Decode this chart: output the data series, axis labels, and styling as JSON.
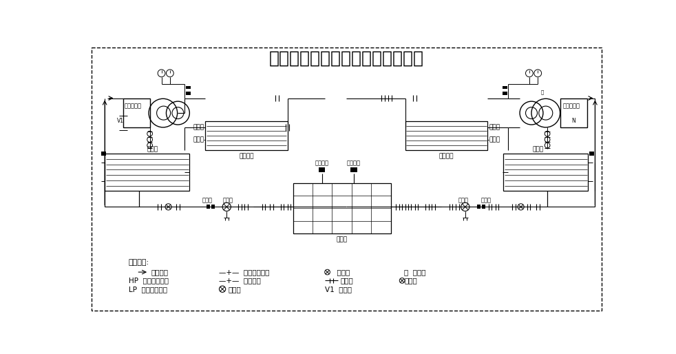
{
  "title": "热回收型水冷式螺杆机工作原理图",
  "bg_color": "#ffffff",
  "line_color": "#000000",
  "legend_title": "符号说明:",
  "left_compressor_label": "螺杆压缩机",
  "right_compressor_label": "螺杆压缩机",
  "left_compressor_sublabel": "V1",
  "right_compressor_sublabel": "N",
  "left_condenser_label": "冷凝器",
  "right_condenser_label": "冷凝器",
  "left_hr_label": "热回收器",
  "right_hr_label": "热回收器",
  "evaporator_label": "蒸发器",
  "left_filter_label": "过滤器",
  "right_filter_label": "过滤器",
  "left_expansion_label": "膨胀阀",
  "right_expansion_label": "膨胀阀",
  "chilled_water_out": "冷冻水出",
  "chilled_water_in": "冷冻水入",
  "left_hw_out": "热水出",
  "left_hw_in": "热水入",
  "right_hw_out": "热水出",
  "right_hw_in": "热水入",
  "legend_row1": [
    "→  冷媒流向",
    "—+—  扩口螺母连接",
    "电磁阀",
    "己  易熔塞"
  ],
  "legend_row2": [
    "HP  高压压力开关",
    "—+—  发兰连接",
    "止回阀",
    "截止阀"
  ],
  "legend_row3": [
    "LP  低压压力开关",
    "膨胀阀",
    "V1  安全阀",
    ""
  ]
}
